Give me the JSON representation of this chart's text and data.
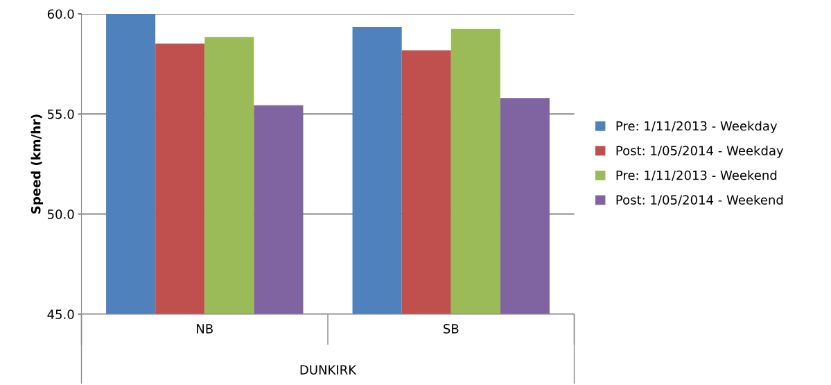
{
  "chart_data": {
    "type": "bar",
    "ylabel": "Speed (km/hr)",
    "xlabel": "DUNKIRK",
    "categories": [
      "NB",
      "SB"
    ],
    "series": [
      {
        "name": "Pre: 1/11/2013 - Weekday",
        "color": "#4f81bd",
        "values": [
          60.0,
          59.34
        ]
      },
      {
        "name": "Post: 1/05/2014 - Weekday",
        "color": "#c0504d",
        "values": [
          58.52,
          58.18
        ]
      },
      {
        "name": "Pre: 1/11/2013 - Weekend",
        "color": "#9bbb59",
        "values": [
          58.85,
          59.25
        ]
      },
      {
        "name": "Post: 1/05/2014 - Weekend",
        "color": "#8064a2",
        "values": [
          55.43,
          55.8
        ]
      }
    ],
    "ylim": [
      45,
      60
    ],
    "yticks": [
      {
        "value": 45,
        "label": "45.0"
      },
      {
        "value": 50,
        "label": "50.0"
      },
      {
        "value": 55,
        "label": "55.0"
      },
      {
        "value": 60,
        "label": "60.0"
      }
    ],
    "grid": "y",
    "legend": "right"
  }
}
